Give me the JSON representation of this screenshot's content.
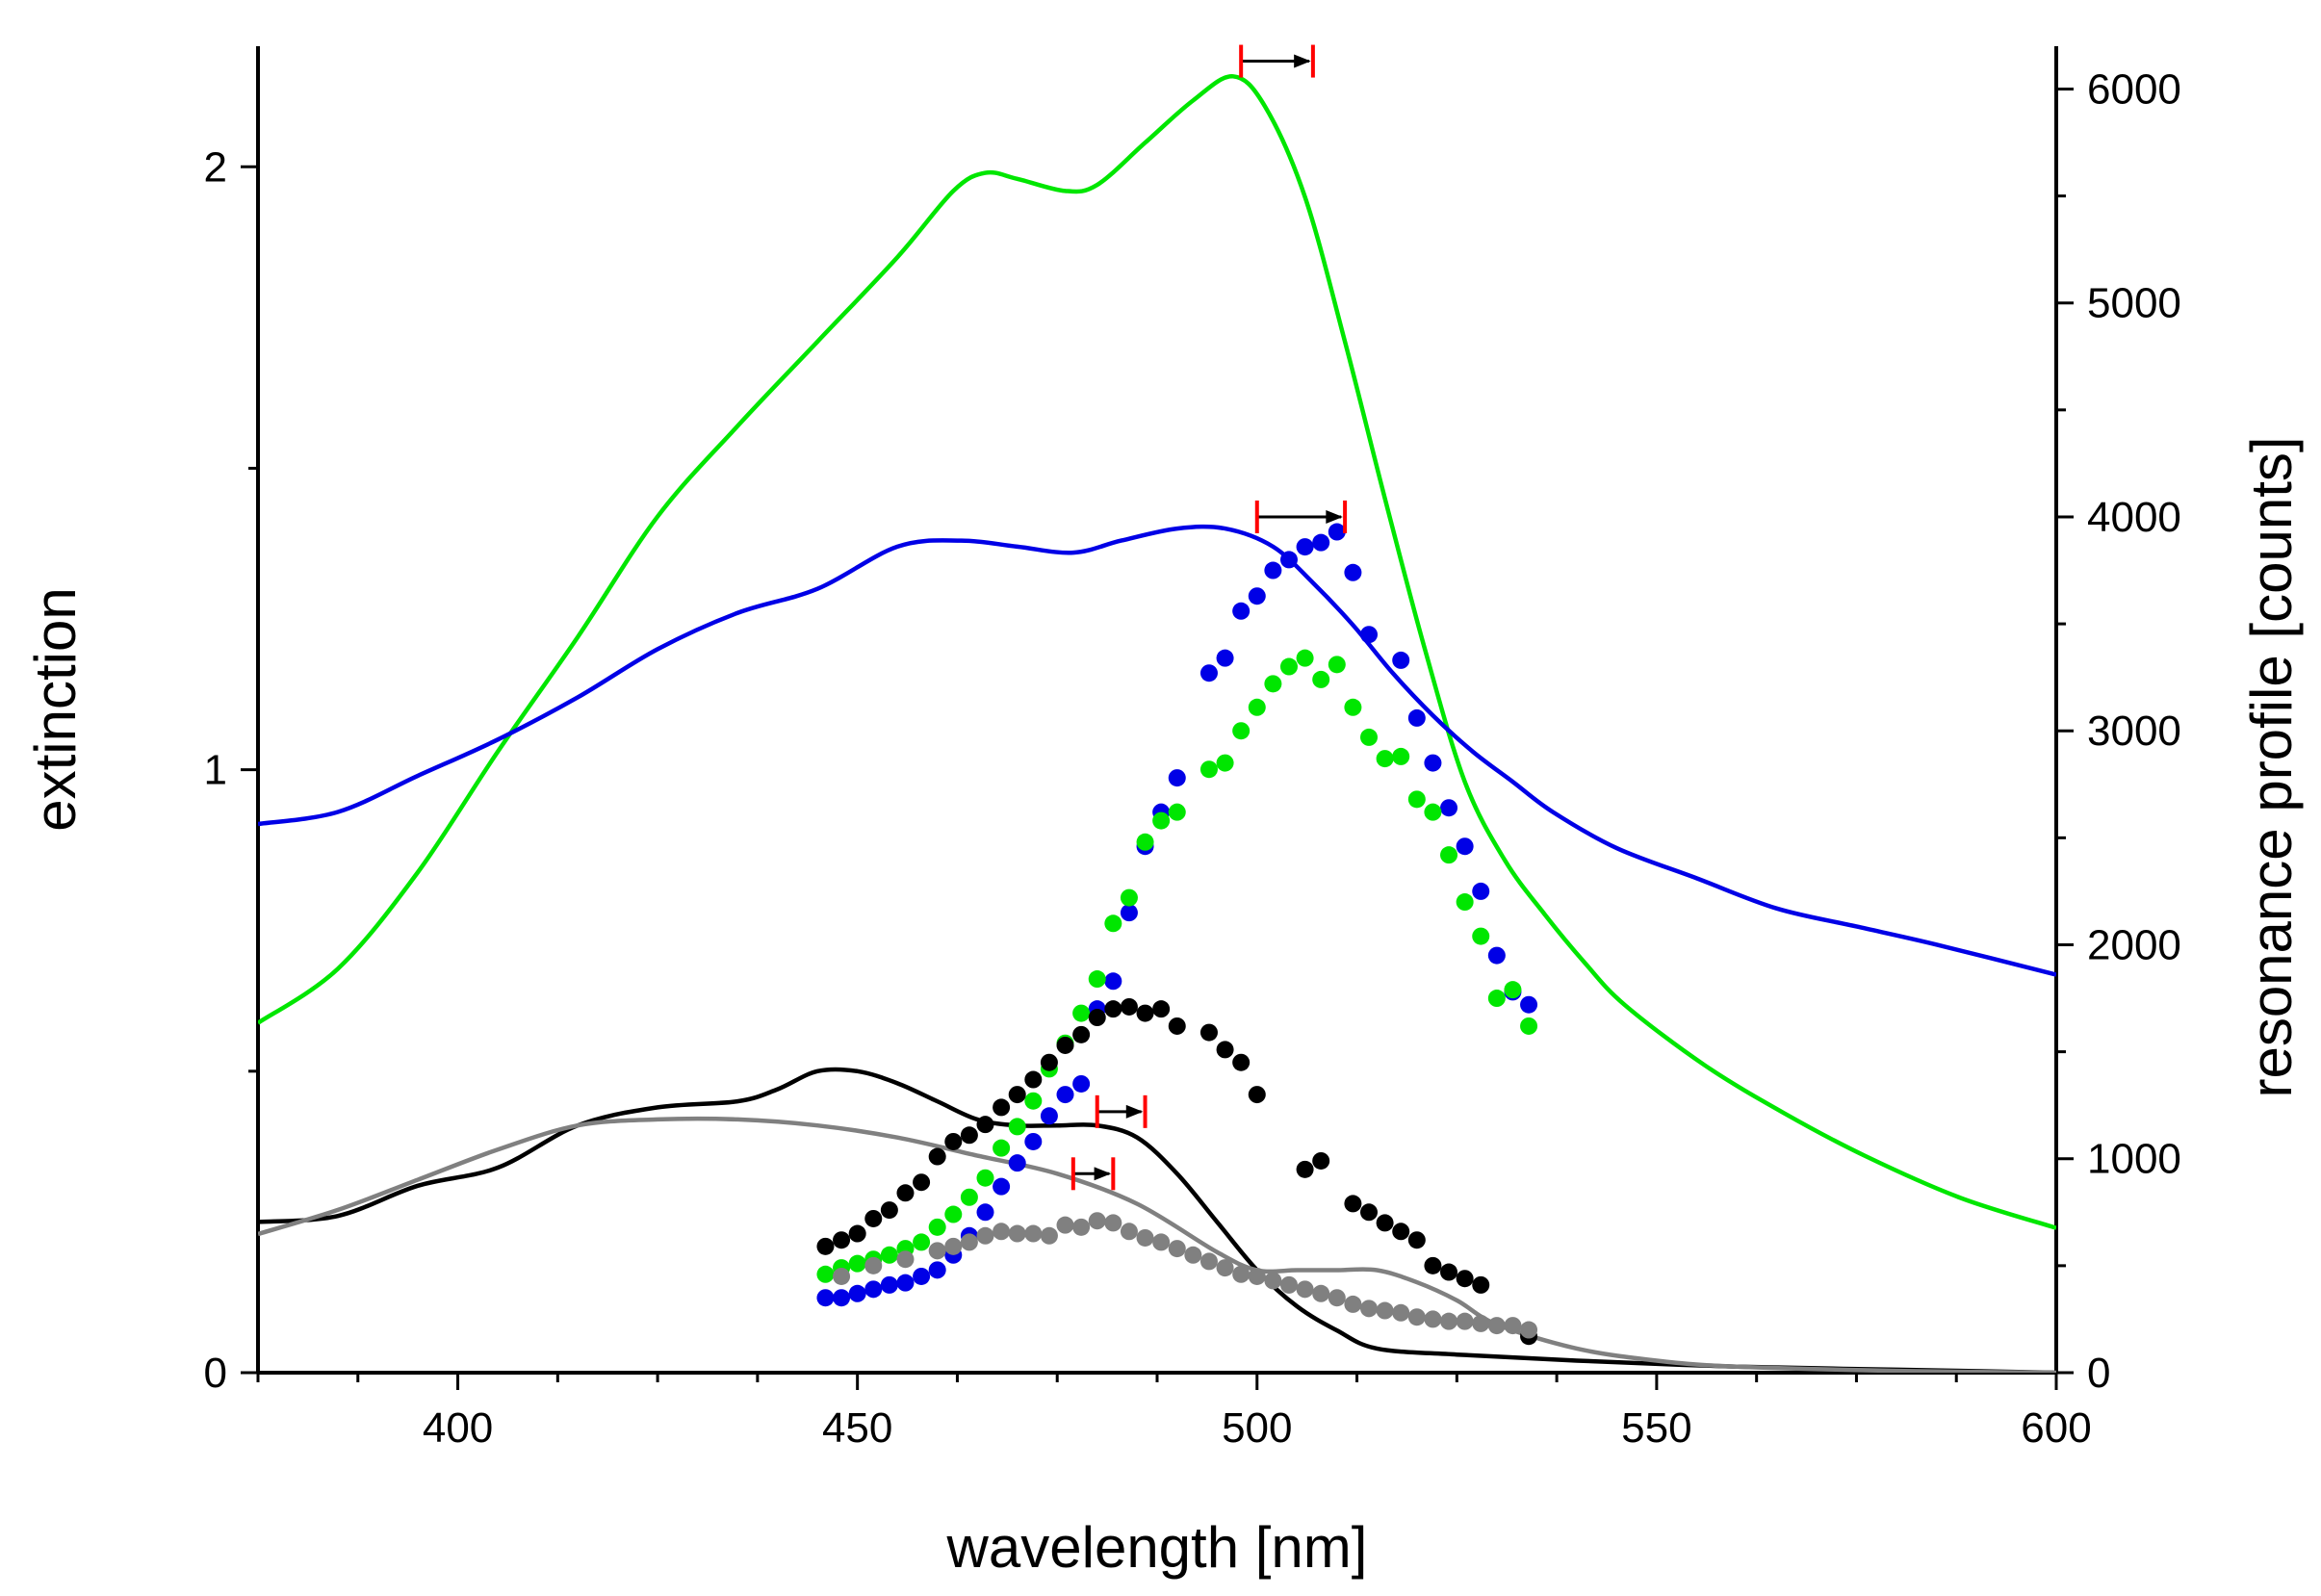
{
  "chart_data": {
    "type": "line",
    "xlabel": "wavelength [nm]",
    "ylabel_left": "extinction",
    "ylabel_right": "resonance profile [counts]",
    "xlim": [
      375,
      600
    ],
    "ylim_left": [
      0,
      2.2
    ],
    "ylim_right": [
      0,
      6200
    ],
    "x_ticks": [
      400,
      450,
      500,
      550,
      600
    ],
    "y_left_ticks": [
      0,
      1,
      2
    ],
    "y_right_ticks": [
      0,
      1000,
      2000,
      3000,
      4000,
      5000,
      6000
    ],
    "grid": false,
    "legend": "none",
    "extinction_series": [
      {
        "color": "#00e600",
        "x": [
          375,
          385,
          395,
          405,
          415,
          425,
          435,
          445,
          455,
          462,
          466,
          470,
          476,
          480,
          486,
          492,
          497,
          501,
          506,
          511,
          516,
          521,
          526,
          531,
          536,
          541,
          546,
          556,
          566,
          576,
          588,
          600
        ],
        "y": [
          0.58,
          0.67,
          0.83,
          1.03,
          1.22,
          1.42,
          1.57,
          1.71,
          1.85,
          1.96,
          1.99,
          1.98,
          1.96,
          1.97,
          2.04,
          2.11,
          2.15,
          2.1,
          1.95,
          1.71,
          1.45,
          1.2,
          0.98,
          0.85,
          0.76,
          0.68,
          0.61,
          0.51,
          0.43,
          0.36,
          0.29,
          0.24
        ]
      },
      {
        "color": "#0000e6",
        "x": [
          375,
          385,
          395,
          405,
          415,
          425,
          435,
          445,
          455,
          463,
          470,
          477,
          483,
          490,
          496,
          502,
          507,
          512,
          517,
          522,
          527,
          532,
          537,
          545,
          555,
          565,
          575,
          585,
          600
        ],
        "y": [
          0.91,
          0.93,
          0.99,
          1.05,
          1.12,
          1.2,
          1.26,
          1.3,
          1.37,
          1.38,
          1.37,
          1.36,
          1.38,
          1.4,
          1.4,
          1.37,
          1.31,
          1.24,
          1.16,
          1.09,
          1.03,
          0.98,
          0.93,
          0.87,
          0.82,
          0.77,
          0.74,
          0.71,
          0.66
        ]
      },
      {
        "color": "#000000",
        "x": [
          375,
          385,
          395,
          405,
          415,
          425,
          435,
          440,
          445,
          450,
          455,
          460,
          465,
          470,
          475,
          480,
          485,
          490,
          495,
          500,
          505,
          510,
          515,
          525,
          540,
          560,
          580,
          600
        ],
        "y": [
          0.25,
          0.26,
          0.31,
          0.34,
          0.41,
          0.44,
          0.45,
          0.47,
          0.5,
          0.5,
          0.48,
          0.45,
          0.42,
          0.41,
          0.41,
          0.41,
          0.39,
          0.33,
          0.25,
          0.17,
          0.11,
          0.07,
          0.04,
          0.03,
          0.02,
          0.01,
          0.005,
          0.0
        ]
      },
      {
        "color": "#808080",
        "x": [
          375,
          385,
          395,
          405,
          415,
          425,
          435,
          445,
          455,
          465,
          475,
          485,
          495,
          500,
          505,
          510,
          515,
          520,
          525,
          530,
          540,
          550,
          560,
          580,
          600
        ],
        "y": [
          0.23,
          0.27,
          0.32,
          0.37,
          0.41,
          0.42,
          0.42,
          0.41,
          0.39,
          0.36,
          0.33,
          0.28,
          0.2,
          0.17,
          0.17,
          0.17,
          0.17,
          0.15,
          0.12,
          0.08,
          0.04,
          0.02,
          0.01,
          0.003,
          0.0
        ]
      }
    ],
    "resonance_series": [
      {
        "color": "#0000e6",
        "x": [
          446,
          448,
          450,
          452,
          454,
          456,
          458,
          460,
          462,
          464,
          466,
          468,
          470,
          472,
          474,
          476,
          478,
          480,
          482,
          484,
          486,
          488,
          490,
          494,
          496,
          498,
          500,
          502,
          504,
          506,
          508,
          510,
          512,
          514,
          518,
          520,
          522,
          524,
          526,
          528,
          530,
          532,
          534
        ],
        "y": [
          350,
          350,
          370,
          390,
          410,
          420,
          450,
          480,
          550,
          640,
          750,
          870,
          980,
          1080,
          1200,
          1300,
          1350,
          1700,
          1830,
          2150,
          2460,
          2620,
          2780,
          3270,
          3340,
          3560,
          3630,
          3750,
          3800,
          3860,
          3880,
          3930,
          3740,
          3450,
          3330,
          3060,
          2850,
          2640,
          2460,
          2250,
          1950,
          1780,
          1720
        ]
      },
      {
        "color": "#00e600",
        "x": [
          446,
          448,
          450,
          452,
          454,
          456,
          458,
          460,
          462,
          464,
          466,
          468,
          470,
          472,
          474,
          476,
          478,
          480,
          482,
          484,
          486,
          488,
          490,
          494,
          496,
          498,
          500,
          502,
          504,
          506,
          508,
          510,
          512,
          514,
          516,
          518,
          520,
          522,
          524,
          526,
          528,
          530,
          532,
          534
        ],
        "y": [
          460,
          490,
          510,
          530,
          550,
          580,
          610,
          680,
          740,
          820,
          910,
          1050,
          1150,
          1270,
          1420,
          1540,
          1680,
          1840,
          2100,
          2220,
          2480,
          2580,
          2620,
          2820,
          2850,
          3000,
          3110,
          3220,
          3300,
          3340,
          3240,
          3310,
          3110,
          2970,
          2870,
          2880,
          2680,
          2620,
          2420,
          2200,
          2040,
          1750,
          1790,
          1620
        ]
      },
      {
        "color": "#000000",
        "x": [
          446,
          448,
          450,
          452,
          454,
          456,
          458,
          460,
          462,
          464,
          466,
          468,
          470,
          472,
          474,
          476,
          478,
          480,
          482,
          484,
          486,
          488,
          490,
          494,
          496,
          498,
          500,
          506,
          508,
          512,
          514,
          516,
          518,
          520,
          522,
          524,
          526,
          528,
          534
        ],
        "y": [
          590,
          620,
          650,
          720,
          760,
          840,
          890,
          1010,
          1080,
          1110,
          1160,
          1240,
          1300,
          1370,
          1450,
          1530,
          1580,
          1660,
          1700,
          1710,
          1680,
          1700,
          1620,
          1590,
          1510,
          1450,
          1300,
          950,
          990,
          790,
          750,
          700,
          660,
          620,
          500,
          470,
          440,
          410,
          170
        ]
      },
      {
        "color": "#808080",
        "x": [
          448,
          452,
          456,
          460,
          462,
          464,
          466,
          468,
          470,
          472,
          474,
          476,
          478,
          480,
          482,
          484,
          486,
          488,
          490,
          492,
          494,
          496,
          498,
          500,
          502,
          504,
          506,
          508,
          510,
          512,
          514,
          516,
          518,
          520,
          522,
          524,
          526,
          528,
          530,
          532,
          534
        ],
        "y": [
          450,
          500,
          530,
          570,
          590,
          610,
          640,
          660,
          650,
          650,
          640,
          690,
          680,
          710,
          700,
          660,
          630,
          610,
          580,
          550,
          520,
          490,
          460,
          450,
          430,
          410,
          390,
          370,
          350,
          320,
          300,
          290,
          280,
          260,
          250,
          240,
          240,
          230,
          220,
          220,
          200
        ]
      }
    ],
    "shift_markers": [
      {
        "x_from": 498,
        "x_to": 507,
        "y_counts": 6130
      },
      {
        "x_from": 500,
        "x_to": 511,
        "y_counts": 4000
      },
      {
        "x_from": 480,
        "x_to": 486,
        "y_counts": 1220
      },
      {
        "x_from": 477,
        "x_to": 482,
        "y_counts": 930
      }
    ]
  }
}
